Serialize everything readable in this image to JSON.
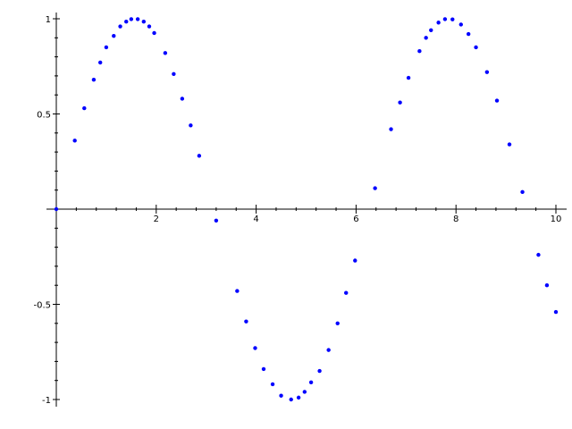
{
  "chart_data": {
    "type": "scatter",
    "title": "",
    "xlabel": "",
    "ylabel": "",
    "xlim": [
      0,
      10
    ],
    "ylim": [
      -1,
      1
    ],
    "grid": false,
    "color": "#0000ff",
    "x_ticks": [
      2,
      4,
      6,
      8,
      10
    ],
    "x_tick_labels": [
      "2",
      "4",
      "6",
      "8",
      "10"
    ],
    "y_ticks": [
      -1,
      -0.5,
      0.5,
      1
    ],
    "y_tick_labels": [
      "-1",
      "-0.5",
      "0.5",
      "1"
    ],
    "series": [
      {
        "x": [
          0.0,
          0.37,
          0.56,
          0.75,
          0.88,
          1.0,
          1.15,
          1.28,
          1.4,
          1.5,
          1.63,
          1.75,
          1.86,
          1.96,
          2.18,
          2.35,
          2.52,
          2.69,
          2.86,
          3.2,
          3.62,
          3.8,
          3.98,
          4.15,
          4.33,
          4.5,
          4.7,
          4.85,
          4.97,
          5.1,
          5.27,
          5.45,
          5.63,
          5.8,
          5.98,
          6.38,
          6.7,
          6.88,
          7.05,
          7.27,
          7.4,
          7.5,
          7.65,
          7.78,
          7.93,
          8.1,
          8.25,
          8.4,
          8.62,
          8.82,
          9.07,
          9.33,
          9.65,
          9.82,
          10.0
        ],
        "y": [
          0.0,
          0.36,
          0.53,
          0.68,
          0.77,
          0.85,
          0.91,
          0.96,
          0.985,
          0.998,
          0.998,
          0.985,
          0.96,
          0.925,
          0.82,
          0.71,
          0.58,
          0.44,
          0.28,
          -0.06,
          -0.43,
          -0.59,
          -0.73,
          -0.84,
          -0.92,
          -0.98,
          -1.0,
          -0.99,
          -0.96,
          -0.91,
          -0.85,
          -0.74,
          -0.6,
          -0.44,
          -0.27,
          0.11,
          0.42,
          0.56,
          0.69,
          0.83,
          0.9,
          0.94,
          0.98,
          0.998,
          0.997,
          0.97,
          0.92,
          0.85,
          0.72,
          0.57,
          0.34,
          0.09,
          -0.24,
          -0.4,
          -0.54
        ]
      }
    ]
  }
}
